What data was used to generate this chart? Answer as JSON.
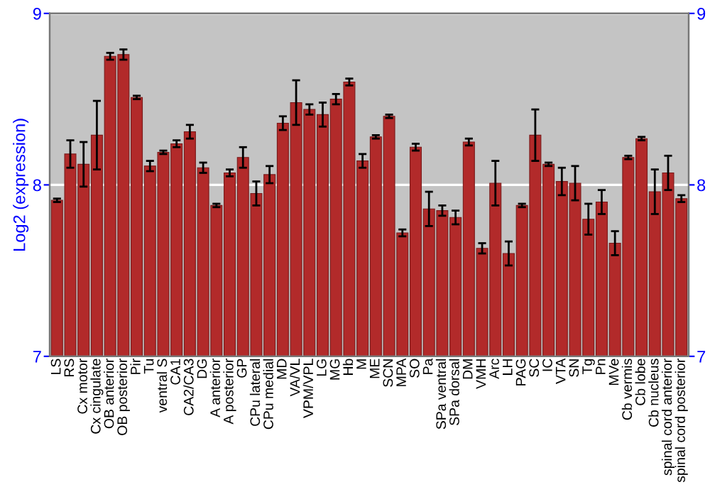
{
  "chart_data": {
    "type": "bar",
    "ylabel": "Log2 (expression)",
    "categories": [
      "LS",
      "RS",
      "Cx motor",
      "Cx cingulate",
      "OB anterior",
      "OB posterior",
      "Pir",
      "Tu",
      "ventral S",
      "CA1",
      "CA2/CA3",
      "DG",
      "A anterior",
      "A posterior",
      "GP",
      "CPu lateral",
      "CPu medial",
      "MD",
      "VA/VL",
      "VPM/VPL",
      "LG",
      "MG",
      "Hb",
      "M",
      "ME",
      "SCN",
      "MPA",
      "SO",
      "Pa",
      "SPa ventral",
      "SPa dorsal",
      "DM",
      "VMH",
      "Arc",
      "LH",
      "PAG",
      "SC",
      "IC",
      "VTA",
      "SN",
      "Tg",
      "Pn",
      "MVe",
      "Cb vermis",
      "Cb lobe",
      "Cb nucleus",
      "spinal cord anterior",
      "spinal cord posterior"
    ],
    "values": [
      7.91,
      8.18,
      8.12,
      8.29,
      8.75,
      8.76,
      8.51,
      8.11,
      8.19,
      8.24,
      8.31,
      8.1,
      7.88,
      8.07,
      8.16,
      7.95,
      8.06,
      8.36,
      8.48,
      8.44,
      8.41,
      8.5,
      8.6,
      8.14,
      8.28,
      8.4,
      7.72,
      8.22,
      7.86,
      7.85,
      7.81,
      8.25,
      7.63,
      8.01,
      7.6,
      7.88,
      8.29,
      8.12,
      8.02,
      8.01,
      7.8,
      7.9,
      7.66,
      8.16,
      8.27,
      7.96,
      8.07,
      7.92
    ],
    "errors": [
      0.01,
      0.08,
      0.13,
      0.2,
      0.02,
      0.03,
      0.01,
      0.03,
      0.01,
      0.02,
      0.04,
      0.03,
      0.01,
      0.02,
      0.06,
      0.07,
      0.05,
      0.04,
      0.13,
      0.03,
      0.07,
      0.03,
      0.02,
      0.04,
      0.01,
      0.01,
      0.02,
      0.02,
      0.1,
      0.03,
      0.04,
      0.02,
      0.03,
      0.13,
      0.07,
      0.01,
      0.15,
      0.01,
      0.08,
      0.1,
      0.09,
      0.07,
      0.07,
      0.01,
      0.01,
      0.13,
      0.1,
      0.02
    ],
    "color": "#b22a2a",
    "ylim": [
      7,
      9
    ],
    "yticks": [
      7,
      8,
      9
    ],
    "y2lim": [
      7,
      9
    ],
    "y2ticks": [
      7,
      8,
      9
    ],
    "grid": "y"
  }
}
